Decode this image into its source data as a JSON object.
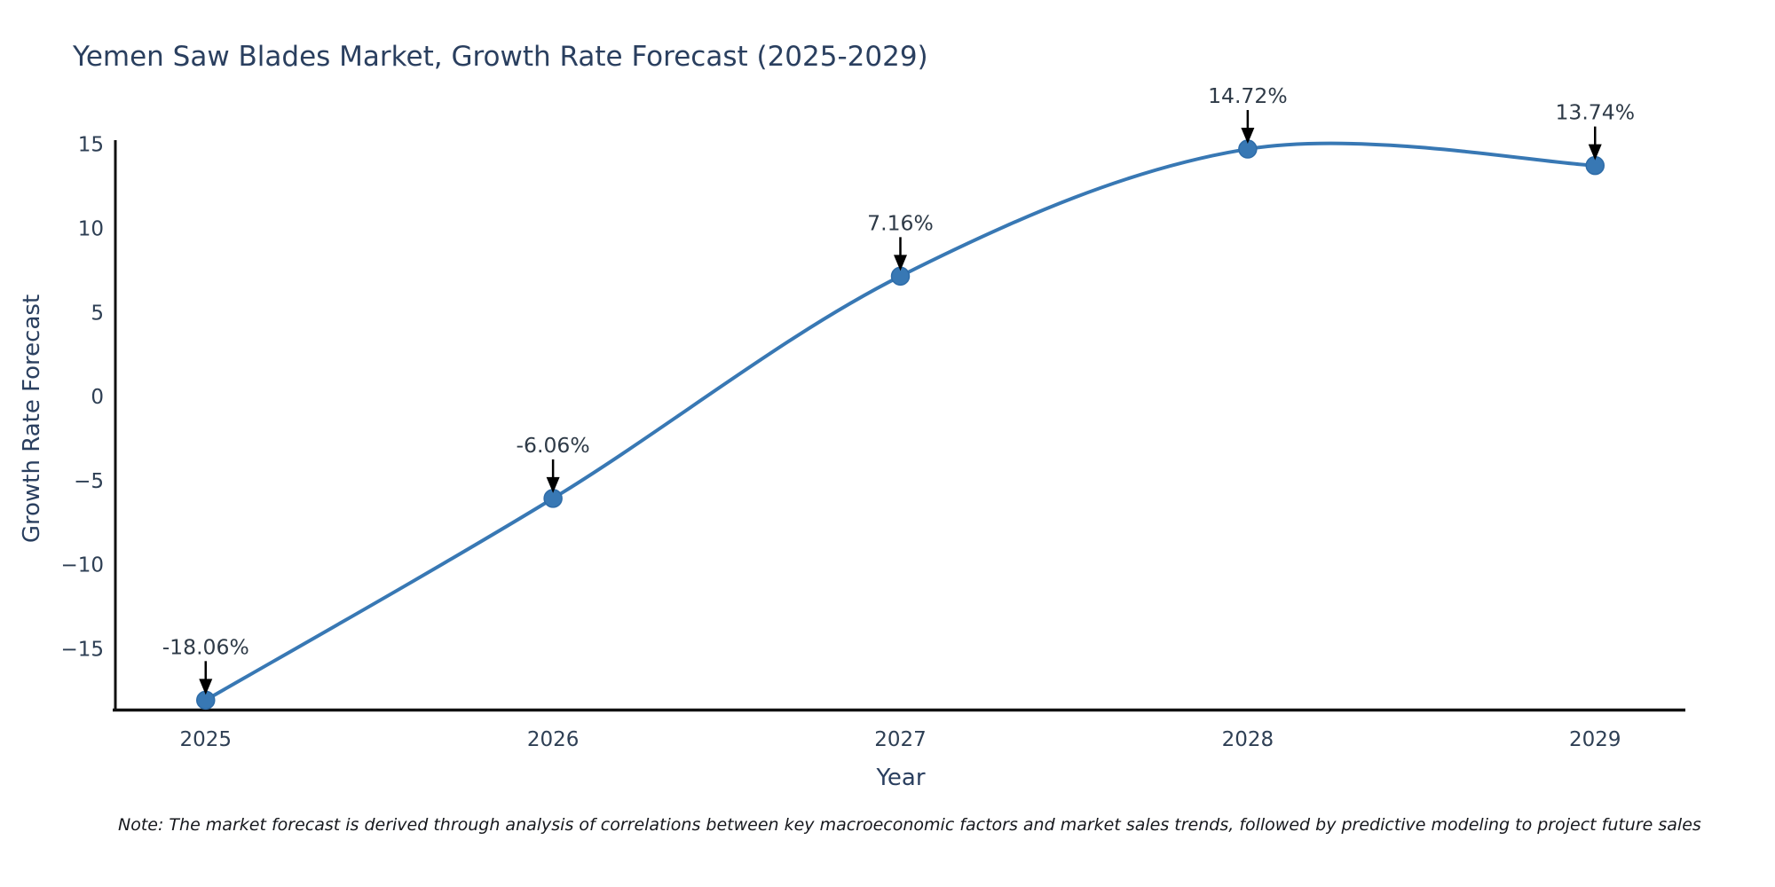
{
  "title": "Yemen Saw Blades Market, Growth Rate Forecast (2025-2029)",
  "note": "Note: The market forecast is derived through analysis of correlations between key macroeconomic factors and market sales trends, followed by predictive modeling to project future sales",
  "chart_data": {
    "type": "line",
    "title": "Yemen Saw Blades Market, Growth Rate Forecast (2025-2029)",
    "xlabel": "Year",
    "ylabel": "Growth Rate Forecast",
    "x": [
      2025,
      2026,
      2027,
      2028,
      2029
    ],
    "series": [
      {
        "name": "Growth Rate Forecast",
        "values": [
          -18.06,
          -6.06,
          7.16,
          14.72,
          13.74
        ]
      }
    ],
    "point_labels": [
      "-18.06%",
      "-6.06%",
      "7.16%",
      "14.72%",
      "13.74%"
    ],
    "x_tick_labels": [
      "2025",
      "2026",
      "2027",
      "2028",
      "2029"
    ],
    "y_ticks": [
      15,
      10,
      5,
      0,
      -5,
      -10,
      -15
    ],
    "y_tick_labels": [
      "15",
      "10",
      "5",
      "0",
      "−5",
      "−10",
      "−15"
    ],
    "x_range": [
      2024.74,
      2029.26
    ],
    "y_range": [
      -18.65,
      15.25
    ],
    "grid": false,
    "legend": "none",
    "smooth": true,
    "colors": {
      "line": "#3878b4",
      "marker_fill": "#3878b4",
      "marker_edge": "#2e6ca8",
      "axis": "#111111",
      "tick_text": "#2e3f54",
      "annotation_text": "#2e3a47",
      "arrow": "#000000",
      "title_text": "#2a3f5f"
    }
  }
}
